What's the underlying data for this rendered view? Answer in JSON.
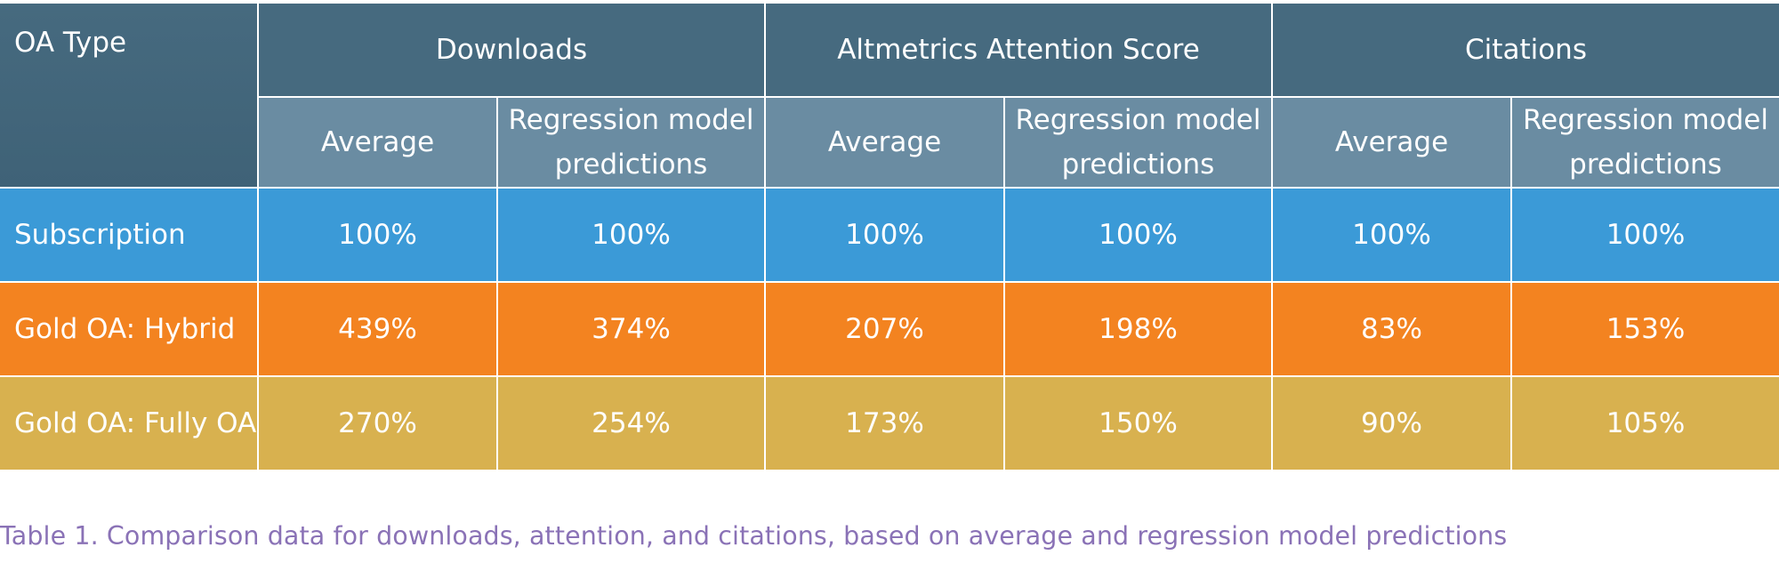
{
  "table": {
    "corner_label": "OA Type",
    "groups": [
      {
        "label": "Downloads"
      },
      {
        "label": "Altmetrics Attention Score"
      },
      {
        "label": "Citations"
      }
    ],
    "subheaders": {
      "average": "Average",
      "regression": "Regression model predictions"
    },
    "rows": [
      {
        "label": "Subscription",
        "values": [
          "100%",
          "100%",
          "100%",
          "100%",
          "100%",
          "100%"
        ],
        "color": "#3b9ad7"
      },
      {
        "label": "Gold OA: Hybrid",
        "values": [
          "439%",
          "374%",
          "207%",
          "198%",
          "83%",
          "153%"
        ],
        "color": "#f38320"
      },
      {
        "label": "Gold OA: Fully OA",
        "values": [
          "270%",
          "254%",
          "173%",
          "150%",
          "90%",
          "105%"
        ],
        "color": "#d8b14f"
      }
    ],
    "header_colors": {
      "dark": "#466a7f",
      "sub": "#6a8ca2"
    }
  },
  "caption": "Table 1. Comparison data for downloads, attention, and citations, based on average and regression model predictions"
}
